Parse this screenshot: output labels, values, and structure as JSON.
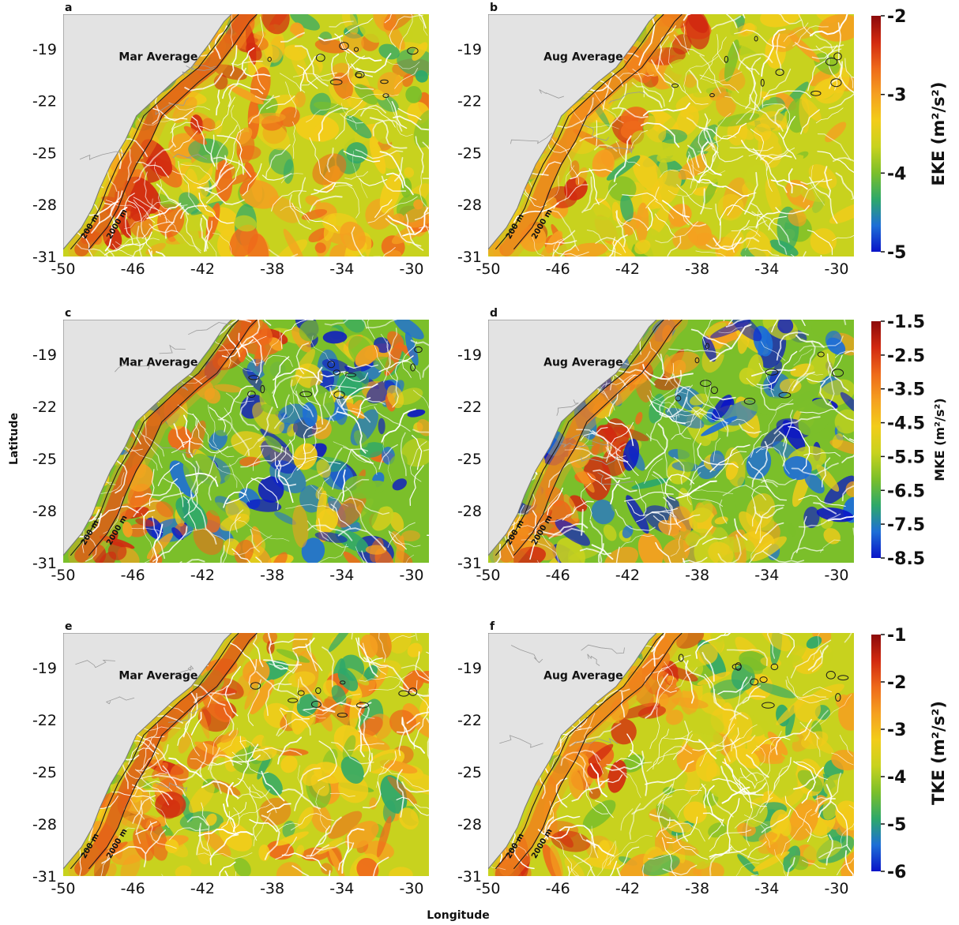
{
  "figure": {
    "xlabel": "Longitude",
    "ylabel": "Latitude"
  },
  "colors": {
    "land": "#e3e3e3",
    "coast": "#777777",
    "streamline": "#ffffff",
    "colormap": [
      "#0a14c8",
      "#1e6fd6",
      "#2ea86a",
      "#7bbf2a",
      "#c8d21e",
      "#f2cc1a",
      "#f5a020",
      "#ee6a1a",
      "#d22a10",
      "#8c0a0a"
    ]
  },
  "chart_data": [
    {
      "type": "heatmap",
      "panel_label": "a",
      "annotation": "Mar Average",
      "xlim": [
        -50,
        -29
      ],
      "ylim": [
        -31,
        -17
      ],
      "x_ticks": [
        "-50",
        "-46",
        "-42",
        "-38",
        "-34",
        "-30"
      ],
      "y_ticks": [
        "-19",
        "-22",
        "-25",
        "-28",
        "-31"
      ],
      "isobath_labels": [
        "200 m",
        "2000 m"
      ],
      "colorbar": {
        "label": "EKE (m²/s²)",
        "ticks": [
          "-2",
          "-3",
          "-4",
          "-5"
        ],
        "range": [
          -5,
          -2
        ]
      }
    },
    {
      "type": "heatmap",
      "panel_label": "b",
      "annotation": "Aug Average",
      "xlim": [
        -50,
        -29
      ],
      "ylim": [
        -31,
        -17
      ],
      "x_ticks": [
        "-50",
        "-46",
        "-42",
        "-38",
        "-34",
        "-30"
      ],
      "y_ticks": [
        "-19",
        "-22",
        "-25",
        "-28",
        "-31"
      ],
      "isobath_labels": [
        "200 m",
        "2000 m"
      ]
    },
    {
      "type": "heatmap",
      "panel_label": "c",
      "annotation": "Mar Average",
      "xlim": [
        -50,
        -29
      ],
      "ylim": [
        -31,
        -17
      ],
      "x_ticks": [
        "-50",
        "-46",
        "-42",
        "-38",
        "-34",
        "-30"
      ],
      "y_ticks": [
        "-19",
        "-22",
        "-25",
        "-28",
        "-31"
      ],
      "isobath_labels": [
        "200 m",
        "2000 m"
      ],
      "colorbar": {
        "label": "MKE (m²/s²)",
        "ticks": [
          "-1.5",
          "-2.5",
          "-3.5",
          "-4.5",
          "-5.5",
          "-6.5",
          "-7.5",
          "-8.5"
        ],
        "range": [
          -8.5,
          -1.5
        ]
      }
    },
    {
      "type": "heatmap",
      "panel_label": "d",
      "annotation": "Aug Average",
      "xlim": [
        -50,
        -29
      ],
      "ylim": [
        -31,
        -17
      ],
      "x_ticks": [
        "-50",
        "-46",
        "-42",
        "-38",
        "-34",
        "-30"
      ],
      "y_ticks": [
        "-19",
        "-22",
        "-25",
        "-28",
        "-31"
      ],
      "isobath_labels": [
        "200 m",
        "2000 m"
      ]
    },
    {
      "type": "heatmap",
      "panel_label": "e",
      "annotation": "Mar Average",
      "xlim": [
        -50,
        -29
      ],
      "ylim": [
        -31,
        -17
      ],
      "x_ticks": [
        "-50",
        "-46",
        "-42",
        "-38",
        "-34",
        "-30"
      ],
      "y_ticks": [
        "-19",
        "-22",
        "-25",
        "-28",
        "-31"
      ],
      "isobath_labels": [
        "200 m",
        "2000 m"
      ],
      "colorbar": {
        "label": "TKE (m²/s²)",
        "ticks": [
          "-1",
          "-2",
          "-3",
          "-4",
          "-5",
          "-6"
        ],
        "range": [
          -6,
          -1
        ]
      }
    },
    {
      "type": "heatmap",
      "panel_label": "f",
      "annotation": "Aug Average",
      "xlim": [
        -50,
        -29
      ],
      "ylim": [
        -31,
        -17
      ],
      "x_ticks": [
        "-50",
        "-46",
        "-42",
        "-38",
        "-34",
        "-30"
      ],
      "y_ticks": [
        "-19",
        "-22",
        "-25",
        "-28",
        "-31"
      ],
      "isobath_labels": [
        "200 m",
        "2000 m"
      ]
    }
  ]
}
